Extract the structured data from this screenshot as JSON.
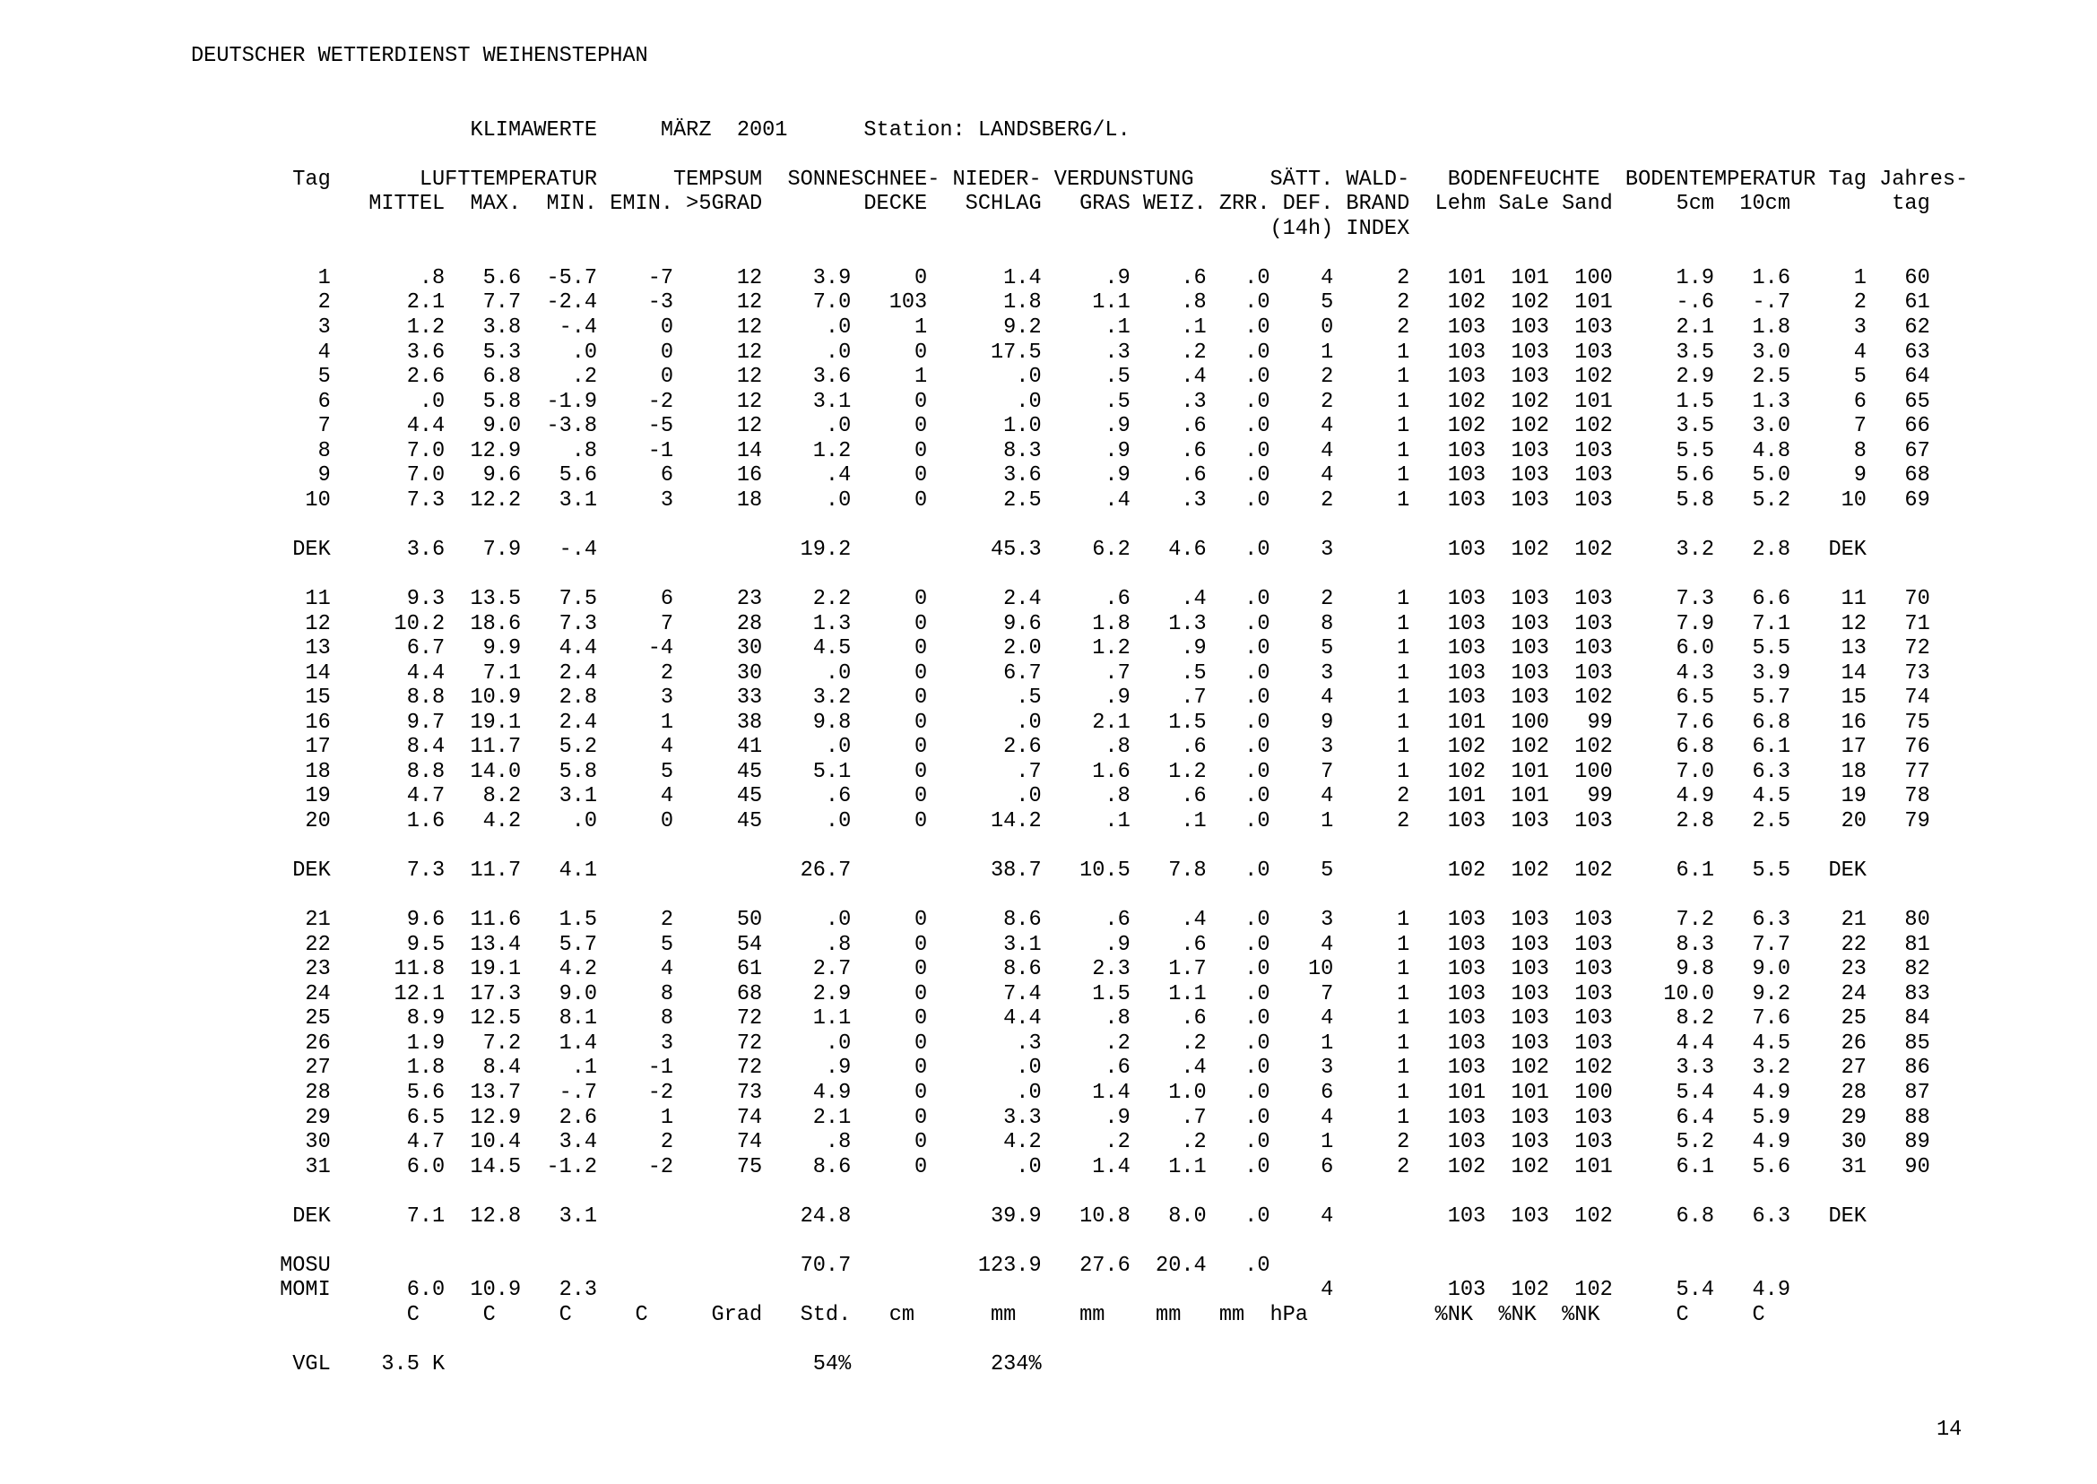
{
  "page": {
    "organization": "DEUTSCHER WETTERDIENST WEIHENSTEPHAN",
    "report_type": "KLIMAWERTE",
    "month": "MÄRZ",
    "year": "2001",
    "station_label": "Station:",
    "station_name": "LANDSBERG/L.",
    "page_number": "14"
  },
  "table": {
    "column_descriptions": [
      "Tag",
      "LUFTTEMPERATUR MITTEL (C)",
      "LUFTTEMPERATUR MAX. (C)",
      "LUFTTEMPERATUR MIN. (C)",
      "EMIN. (C)",
      "TEMPSUM >5GRAD (Grad)",
      "SONNE (Std.)",
      "SCHNEEDECKE (cm)",
      "NIEDERSCHLAG (mm)",
      "VERDUNSTUNG GRAS (mm)",
      "VERDUNSTUNG WEIZ. (mm)",
      "VERDUNSTUNG ZRR. (mm)",
      "SÄTT.DEF. 14h (hPa)",
      "WALDBRAND-INDEX",
      "BODENFEUCHTE Lehm (%NK)",
      "BODENFEUCHTE SaLe (%NK)",
      "BODENFEUCHTE Sand (%NK)",
      "BODENTEMPERATUR 5cm (C)",
      "BODENTEMPERATUR 10cm (C)",
      "Tag",
      "Jahrestag"
    ],
    "header_line1": [
      "Tag",
      "LUFTTEMPERATUR",
      "TEMPSUM",
      "SONNE",
      "SCHNEE-",
      "NIEDER-",
      "VERDUNSTUNG",
      "SÄTT.",
      "WALD-",
      "BODENFEUCHTE",
      "BODENTEMPERATUR",
      "Tag",
      "Jahres-"
    ],
    "header_line2": [
      "MITTEL",
      "MAX.",
      "MIN.",
      "EMIN.",
      ">5GRAD",
      "DECKE",
      "SCHLAG",
      "GRAS",
      "WEIZ.",
      "ZRR.",
      "DEF.",
      "BRAND",
      "Lehm",
      "SaLe",
      "Sand",
      "5cm",
      "10cm",
      "tag"
    ],
    "header_line3": [
      "(14h)",
      "INDEX"
    ],
    "units_row": [
      "C",
      "C",
      "C",
      "C",
      "Grad",
      "Std.",
      "cm",
      "mm",
      "mm",
      "mm",
      "mm",
      "hPa",
      "%NK",
      "%NK",
      "%NK",
      "C",
      "C"
    ],
    "day_rows": [
      [
        "1",
        ".8",
        "5.6",
        "-5.7",
        "-7",
        "12",
        "3.9",
        "0",
        "1.4",
        ".9",
        ".6",
        ".0",
        "4",
        "2",
        "101",
        "101",
        "100",
        "1.9",
        "1.6",
        "1",
        "60"
      ],
      [
        "2",
        "2.1",
        "7.7",
        "-2.4",
        "-3",
        "12",
        "7.0",
        "103",
        "1.8",
        "1.1",
        ".8",
        ".0",
        "5",
        "2",
        "102",
        "102",
        "101",
        "-.6",
        "-.7",
        "2",
        "61"
      ],
      [
        "3",
        "1.2",
        "3.8",
        "-.4",
        "0",
        "12",
        ".0",
        "1",
        "9.2",
        ".1",
        ".1",
        ".0",
        "0",
        "2",
        "103",
        "103",
        "103",
        "2.1",
        "1.8",
        "3",
        "62"
      ],
      [
        "4",
        "3.6",
        "5.3",
        ".0",
        "0",
        "12",
        ".0",
        "0",
        "17.5",
        ".3",
        ".2",
        ".0",
        "1",
        "1",
        "103",
        "103",
        "103",
        "3.5",
        "3.0",
        "4",
        "63"
      ],
      [
        "5",
        "2.6",
        "6.8",
        ".2",
        "0",
        "12",
        "3.6",
        "1",
        ".0",
        ".5",
        ".4",
        ".0",
        "2",
        "1",
        "103",
        "103",
        "102",
        "2.9",
        "2.5",
        "5",
        "64"
      ],
      [
        "6",
        ".0",
        "5.8",
        "-1.9",
        "-2",
        "12",
        "3.1",
        "0",
        ".0",
        ".5",
        ".3",
        ".0",
        "2",
        "1",
        "102",
        "102",
        "101",
        "1.5",
        "1.3",
        "6",
        "65"
      ],
      [
        "7",
        "4.4",
        "9.0",
        "-3.8",
        "-5",
        "12",
        ".0",
        "0",
        "1.0",
        ".9",
        ".6",
        ".0",
        "4",
        "1",
        "102",
        "102",
        "102",
        "3.5",
        "3.0",
        "7",
        "66"
      ],
      [
        "8",
        "7.0",
        "12.9",
        ".8",
        "-1",
        "14",
        "1.2",
        "0",
        "8.3",
        ".9",
        ".6",
        ".0",
        "4",
        "1",
        "103",
        "103",
        "103",
        "5.5",
        "4.8",
        "8",
        "67"
      ],
      [
        "9",
        "7.0",
        "9.6",
        "5.6",
        "6",
        "16",
        ".4",
        "0",
        "3.6",
        ".9",
        ".6",
        ".0",
        "4",
        "1",
        "103",
        "103",
        "103",
        "5.6",
        "5.0",
        "9",
        "68"
      ],
      [
        "10",
        "7.3",
        "12.2",
        "3.1",
        "3",
        "18",
        ".0",
        "0",
        "2.5",
        ".4",
        ".3",
        ".0",
        "2",
        "1",
        "103",
        "103",
        "103",
        "5.8",
        "5.2",
        "10",
        "69"
      ],
      [
        "11",
        "9.3",
        "13.5",
        "7.5",
        "6",
        "23",
        "2.2",
        "0",
        "2.4",
        ".6",
        ".4",
        ".0",
        "2",
        "1",
        "103",
        "103",
        "103",
        "7.3",
        "6.6",
        "11",
        "70"
      ],
      [
        "12",
        "10.2",
        "18.6",
        "7.3",
        "7",
        "28",
        "1.3",
        "0",
        "9.6",
        "1.8",
        "1.3",
        ".0",
        "8",
        "1",
        "103",
        "103",
        "103",
        "7.9",
        "7.1",
        "12",
        "71"
      ],
      [
        "13",
        "6.7",
        "9.9",
        "4.4",
        "-4",
        "30",
        "4.5",
        "0",
        "2.0",
        "1.2",
        ".9",
        ".0",
        "5",
        "1",
        "103",
        "103",
        "103",
        "6.0",
        "5.5",
        "13",
        "72"
      ],
      [
        "14",
        "4.4",
        "7.1",
        "2.4",
        "2",
        "30",
        ".0",
        "0",
        "6.7",
        ".7",
        ".5",
        ".0",
        "3",
        "1",
        "103",
        "103",
        "103",
        "4.3",
        "3.9",
        "14",
        "73"
      ],
      [
        "15",
        "8.8",
        "10.9",
        "2.8",
        "3",
        "33",
        "3.2",
        "0",
        ".5",
        ".9",
        ".7",
        ".0",
        "4",
        "1",
        "103",
        "103",
        "102",
        "6.5",
        "5.7",
        "15",
        "74"
      ],
      [
        "16",
        "9.7",
        "19.1",
        "2.4",
        "1",
        "38",
        "9.8",
        "0",
        ".0",
        "2.1",
        "1.5",
        ".0",
        "9",
        "1",
        "101",
        "100",
        "99",
        "7.6",
        "6.8",
        "16",
        "75"
      ],
      [
        "17",
        "8.4",
        "11.7",
        "5.2",
        "4",
        "41",
        ".0",
        "0",
        "2.6",
        ".8",
        ".6",
        ".0",
        "3",
        "1",
        "102",
        "102",
        "102",
        "6.8",
        "6.1",
        "17",
        "76"
      ],
      [
        "18",
        "8.8",
        "14.0",
        "5.8",
        "5",
        "45",
        "5.1",
        "0",
        ".7",
        "1.6",
        "1.2",
        ".0",
        "7",
        "1",
        "102",
        "101",
        "100",
        "7.0",
        "6.3",
        "18",
        "77"
      ],
      [
        "19",
        "4.7",
        "8.2",
        "3.1",
        "4",
        "45",
        ".6",
        "0",
        ".0",
        ".8",
        ".6",
        ".0",
        "4",
        "2",
        "101",
        "101",
        "99",
        "4.9",
        "4.5",
        "19",
        "78"
      ],
      [
        "20",
        "1.6",
        "4.2",
        ".0",
        "0",
        "45",
        ".0",
        "0",
        "14.2",
        ".1",
        ".1",
        ".0",
        "1",
        "2",
        "103",
        "103",
        "103",
        "2.8",
        "2.5",
        "20",
        "79"
      ],
      [
        "21",
        "9.6",
        "11.6",
        "1.5",
        "2",
        "50",
        ".0",
        "0",
        "8.6",
        ".6",
        ".4",
        ".0",
        "3",
        "1",
        "103",
        "103",
        "103",
        "7.2",
        "6.3",
        "21",
        "80"
      ],
      [
        "22",
        "9.5",
        "13.4",
        "5.7",
        "5",
        "54",
        ".8",
        "0",
        "3.1",
        ".9",
        ".6",
        ".0",
        "4",
        "1",
        "103",
        "103",
        "103",
        "8.3",
        "7.7",
        "22",
        "81"
      ],
      [
        "23",
        "11.8",
        "19.1",
        "4.2",
        "4",
        "61",
        "2.7",
        "0",
        "8.6",
        "2.3",
        "1.7",
        ".0",
        "10",
        "1",
        "103",
        "103",
        "103",
        "9.8",
        "9.0",
        "23",
        "82"
      ],
      [
        "24",
        "12.1",
        "17.3",
        "9.0",
        "8",
        "68",
        "2.9",
        "0",
        "7.4",
        "1.5",
        "1.1",
        ".0",
        "7",
        "1",
        "103",
        "103",
        "103",
        "10.0",
        "9.2",
        "24",
        "83"
      ],
      [
        "25",
        "8.9",
        "12.5",
        "8.1",
        "8",
        "72",
        "1.1",
        "0",
        "4.4",
        ".8",
        ".6",
        ".0",
        "4",
        "1",
        "103",
        "103",
        "103",
        "8.2",
        "7.6",
        "25",
        "84"
      ],
      [
        "26",
        "1.9",
        "7.2",
        "1.4",
        "3",
        "72",
        ".0",
        "0",
        ".3",
        ".2",
        ".2",
        ".0",
        "1",
        "1",
        "103",
        "103",
        "103",
        "4.4",
        "4.5",
        "26",
        "85"
      ],
      [
        "27",
        "1.8",
        "8.4",
        ".1",
        "-1",
        "72",
        ".9",
        "0",
        ".0",
        ".6",
        ".4",
        ".0",
        "3",
        "1",
        "103",
        "102",
        "102",
        "3.3",
        "3.2",
        "27",
        "86"
      ],
      [
        "28",
        "5.6",
        "13.7",
        "-.7",
        "-2",
        "73",
        "4.9",
        "0",
        ".0",
        "1.4",
        "1.0",
        ".0",
        "6",
        "1",
        "101",
        "101",
        "100",
        "5.4",
        "4.9",
        "28",
        "87"
      ],
      [
        "29",
        "6.5",
        "12.9",
        "2.6",
        "1",
        "74",
        "2.1",
        "0",
        "3.3",
        ".9",
        ".7",
        ".0",
        "4",
        "1",
        "103",
        "103",
        "103",
        "6.4",
        "5.9",
        "29",
        "88"
      ],
      [
        "30",
        "4.7",
        "10.4",
        "3.4",
        "2",
        "74",
        ".8",
        "0",
        "4.2",
        ".2",
        ".2",
        ".0",
        "1",
        "2",
        "103",
        "103",
        "103",
        "5.2",
        "4.9",
        "30",
        "89"
      ],
      [
        "31",
        "6.0",
        "14.5",
        "-1.2",
        "-2",
        "75",
        "8.6",
        "0",
        ".0",
        "1.4",
        "1.1",
        ".0",
        "6",
        "2",
        "102",
        "102",
        "101",
        "6.1",
        "5.6",
        "31",
        "90"
      ]
    ],
    "dek_rows": [
      [
        "DEK",
        "3.6",
        "7.9",
        "-.4",
        "",
        "",
        "19.2",
        "",
        "45.3",
        "6.2",
        "4.6",
        ".0",
        "3",
        "",
        "103",
        "102",
        "102",
        "3.2",
        "2.8",
        "DEK",
        ""
      ],
      [
        "DEK",
        "7.3",
        "11.7",
        "4.1",
        "",
        "",
        "26.7",
        "",
        "38.7",
        "10.5",
        "7.8",
        ".0",
        "5",
        "",
        "102",
        "102",
        "102",
        "6.1",
        "5.5",
        "DEK",
        ""
      ],
      [
        "DEK",
        "7.1",
        "12.8",
        "3.1",
        "",
        "",
        "24.8",
        "",
        "39.9",
        "10.8",
        "8.0",
        ".0",
        "4",
        "",
        "103",
        "103",
        "102",
        "6.8",
        "6.3",
        "DEK",
        ""
      ]
    ],
    "mosu_row": [
      "MOSU",
      "",
      "",
      "",
      "",
      "",
      "70.7",
      "",
      "123.9",
      "27.6",
      "20.4",
      ".0",
      "",
      "",
      "",
      "",
      "",
      "",
      "",
      "",
      ""
    ],
    "momi_row": [
      "MOMI",
      "6.0",
      "10.9",
      "2.3",
      "",
      "",
      "",
      "",
      "",
      "",
      "",
      "",
      "4",
      "",
      "103",
      "102",
      "102",
      "5.4",
      "4.9",
      "",
      ""
    ],
    "vgl_row": [
      "VGL",
      "3.5 K",
      "",
      "",
      "",
      "",
      "54%",
      "",
      "234%",
      "",
      "",
      "",
      "",
      "",
      "",
      "",
      "",
      "",
      "",
      "",
      ""
    ]
  }
}
